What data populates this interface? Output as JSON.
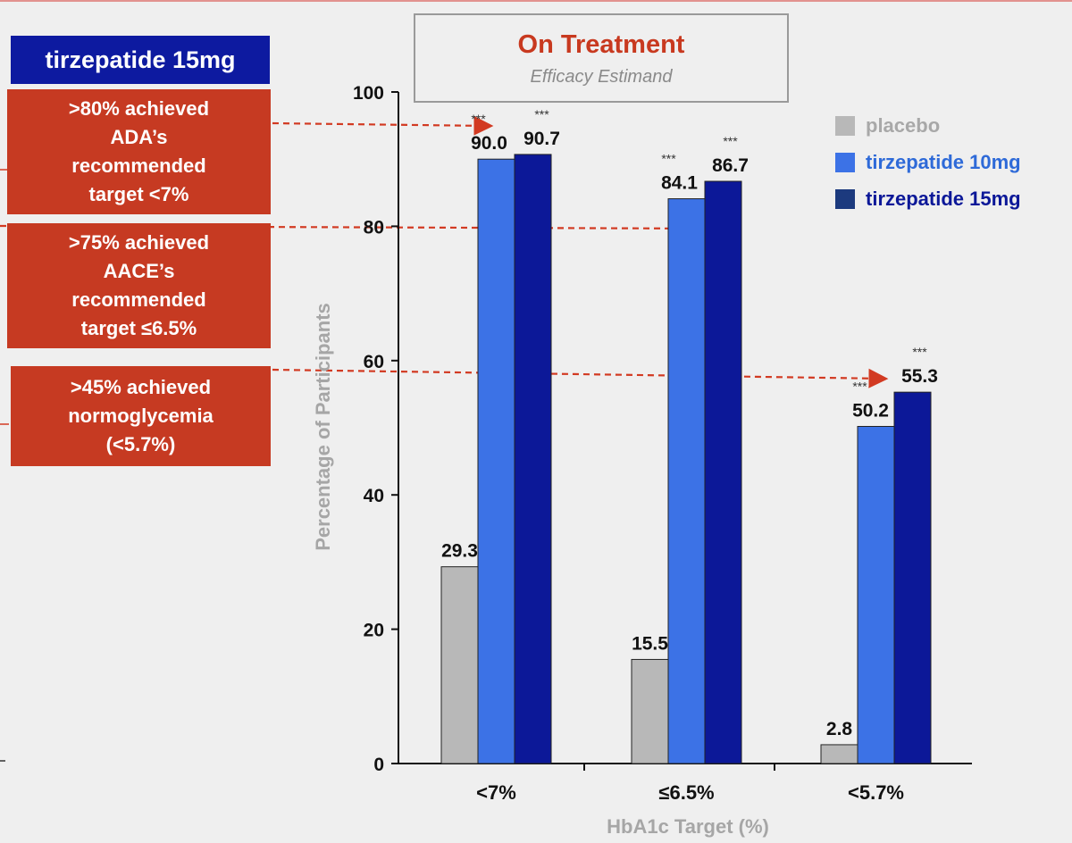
{
  "badge": {
    "label": "tirzepatide 15mg"
  },
  "callouts": [
    {
      "text": ">80% achieved\nADA’s\nrecommended\ntarget <7%"
    },
    {
      "text": ">75% achieved\nAACE’s\nrecommended\ntarget ≤6.5%"
    },
    {
      "text": ">45% achieved\nnormoglycemia\n(<5.7%)"
    }
  ],
  "colors": {
    "placebo": "#b8b8b8",
    "tirzepatide_10mg": "#3c72e6",
    "tirzepatide_15mg": "#0c1898",
    "callout_red": "#c63a22",
    "arrow_red": "#d23a22"
  },
  "chart_data": {
    "type": "bar",
    "title": "On Treatment",
    "subtitle": "Efficacy Estimand",
    "xlabel": "HbA1c Target (%)",
    "ylabel": "Percentage of Participants",
    "ylim": [
      0,
      100
    ],
    "yticks": [
      0,
      20,
      40,
      60,
      80,
      100
    ],
    "categories": [
      "<7%",
      "≤6.5%",
      "<5.7%"
    ],
    "series": [
      {
        "name": "placebo",
        "values": [
          29.3,
          15.5,
          2.8
        ],
        "labels": [
          "29.3",
          "15.5",
          "2.8"
        ],
        "significance": [
          "",
          "",
          ""
        ]
      },
      {
        "name": "tirzepatide 10mg",
        "values": [
          90.0,
          84.1,
          50.2
        ],
        "labels": [
          "90.0",
          "84.1",
          "50.2"
        ],
        "significance": [
          "***",
          "***",
          "***"
        ]
      },
      {
        "name": "tirzepatide 15mg",
        "values": [
          90.7,
          86.7,
          55.3
        ],
        "labels": [
          "90.7",
          "86.7",
          "55.3"
        ],
        "significance": [
          "***",
          "***",
          "***"
        ]
      }
    ],
    "legend_position": "top-right"
  }
}
